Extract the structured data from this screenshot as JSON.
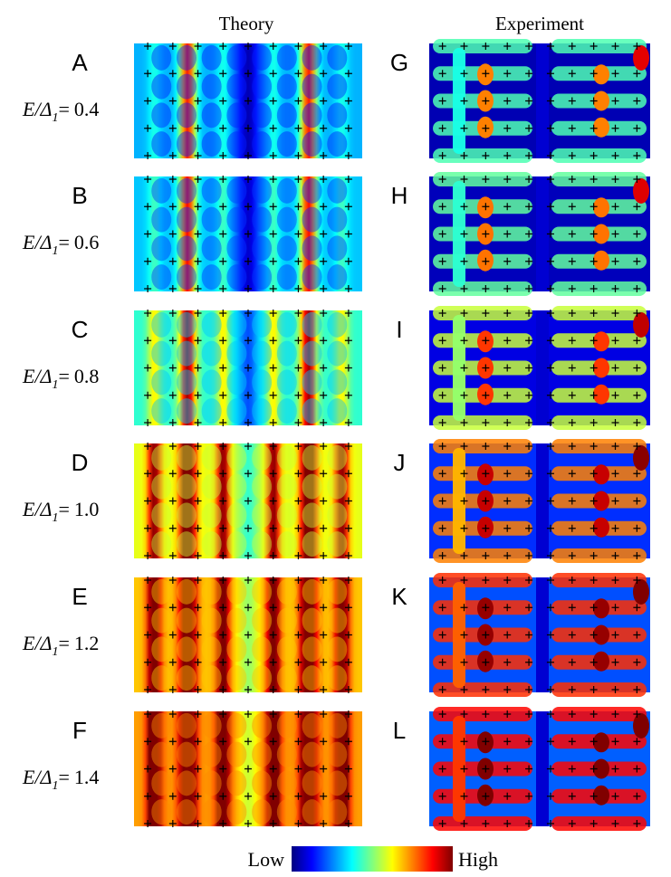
{
  "columns": {
    "theory": "Theory",
    "experiment": "Experiment"
  },
  "energy_label": {
    "symbol": "E/Δ",
    "subscript": "1",
    "equals": "="
  },
  "rows": [
    {
      "theory_letter": "A",
      "ratio": "0.4",
      "experiment_letter": "G"
    },
    {
      "theory_letter": "B",
      "ratio": "0.6",
      "experiment_letter": "H"
    },
    {
      "theory_letter": "C",
      "ratio": "0.8",
      "experiment_letter": "I"
    },
    {
      "theory_letter": "D",
      "ratio": "1.0",
      "experiment_letter": "J"
    },
    {
      "theory_letter": "E",
      "ratio": "1.2",
      "experiment_letter": "K"
    },
    {
      "theory_letter": "F",
      "ratio": "1.4",
      "experiment_letter": "L"
    }
  ],
  "colorbar": {
    "low": "Low",
    "high": "High"
  }
}
